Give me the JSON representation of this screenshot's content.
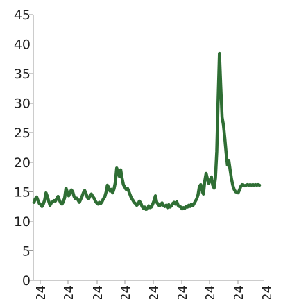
{
  "chart_data": {
    "type": "line",
    "title": "",
    "xlabel": "",
    "ylabel": "",
    "ylim": [
      0,
      45
    ],
    "y_ticks": [
      0,
      5,
      10,
      15,
      20,
      25,
      30,
      35,
      40,
      45
    ],
    "x_tick_labels": [
      "24",
      "24",
      "24",
      "24",
      "24",
      "24",
      "24",
      "24",
      "24"
    ],
    "grid": false,
    "legend": "none",
    "colors": {
      "series": "#2f6e34",
      "axis": "#9a9a9a",
      "text": "#1f1f1f"
    },
    "series": [
      {
        "x": [
          0,
          1,
          2,
          3,
          4,
          5,
          6,
          7,
          8,
          9,
          10,
          11,
          12,
          13,
          14,
          15,
          16,
          17,
          18,
          19,
          20,
          21,
          22,
          23,
          24,
          25,
          26,
          27,
          28,
          29,
          30,
          31,
          32,
          33,
          34,
          35,
          36,
          37,
          38,
          39,
          40,
          41,
          42,
          43,
          44,
          45,
          46,
          47,
          48,
          49,
          50,
          51,
          52,
          53,
          54,
          55,
          56,
          57,
          58,
          59,
          60,
          61,
          62,
          63,
          64,
          65,
          66,
          67,
          68,
          69,
          70,
          71,
          72,
          73,
          74,
          75,
          76,
          77,
          78,
          79,
          80,
          81,
          82,
          83,
          84,
          85,
          86,
          87,
          88,
          89,
          90,
          91,
          92,
          93,
          94,
          95,
          96,
          97,
          98,
          99,
          100,
          101,
          102,
          103,
          104,
          105,
          106,
          107,
          108,
          109,
          110,
          111,
          112,
          113,
          114,
          115,
          116,
          117,
          118,
          119,
          120,
          121,
          122,
          123,
          124,
          125,
          126,
          127,
          128,
          129,
          130,
          131,
          132,
          133,
          134,
          135,
          136,
          137,
          138,
          139,
          140,
          141,
          142,
          143,
          144,
          145,
          146,
          147,
          148,
          149,
          150,
          151,
          152,
          153,
          154,
          155,
          156,
          157,
          158,
          159,
          160,
          161,
          162,
          163,
          164,
          165,
          166,
          167,
          168,
          169
        ],
        "values": [
          13.2,
          13.8,
          14.1,
          13.5,
          13.0,
          12.8,
          12.5,
          12.9,
          13.6,
          14.8,
          14.2,
          13.4,
          12.7,
          13.1,
          13.3,
          13.5,
          13.4,
          13.8,
          14.2,
          13.6,
          13.1,
          12.9,
          13.3,
          14.0,
          15.6,
          14.9,
          14.3,
          14.8,
          15.3,
          15.0,
          14.2,
          13.8,
          13.9,
          13.6,
          13.2,
          13.7,
          14.2,
          14.8,
          15.2,
          14.7,
          14.0,
          13.8,
          14.3,
          14.6,
          14.2,
          13.9,
          13.4,
          13.1,
          12.9,
          13.2,
          13.0,
          13.3,
          13.8,
          14.1,
          14.9,
          16.1,
          15.7,
          15.1,
          15.4,
          14.8,
          15.5,
          16.6,
          19.0,
          18.4,
          17.6,
          18.7,
          17.3,
          16.2,
          15.8,
          15.4,
          15.6,
          15.1,
          14.5,
          13.9,
          13.6,
          13.2,
          13.0,
          12.7,
          12.9,
          13.4,
          13.1,
          12.5,
          12.2,
          12.4,
          12.0,
          12.1,
          12.6,
          12.3,
          12.4,
          12.9,
          13.5,
          14.3,
          13.2,
          12.9,
          12.6,
          12.8,
          13.1,
          12.7,
          12.5,
          12.7,
          12.3,
          12.8,
          12.4,
          12.6,
          13.0,
          13.2,
          12.9,
          13.3,
          12.7,
          12.5,
          12.4,
          12.1,
          12.3,
          12.2,
          12.5,
          12.4,
          12.7,
          12.5,
          12.9,
          12.6,
          13.0,
          13.4,
          13.8,
          14.5,
          15.9,
          16.2,
          15.1,
          14.6,
          16.8,
          18.1,
          17.2,
          16.4,
          16.9,
          17.5,
          16.1,
          15.6,
          17.3,
          21.8,
          30.5,
          38.4,
          32.7,
          27.6,
          26.3,
          24.1,
          21.6,
          19.5,
          20.3,
          18.7,
          17.2,
          16.1,
          15.4,
          15.0,
          14.9,
          14.8,
          15.3,
          15.9,
          16.2,
          16.1,
          16.0,
          16.1,
          16.2,
          16.1,
          16.2,
          16.1,
          16.2,
          16.1,
          16.2,
          16.1,
          16.2,
          16.1
        ]
      }
    ]
  }
}
